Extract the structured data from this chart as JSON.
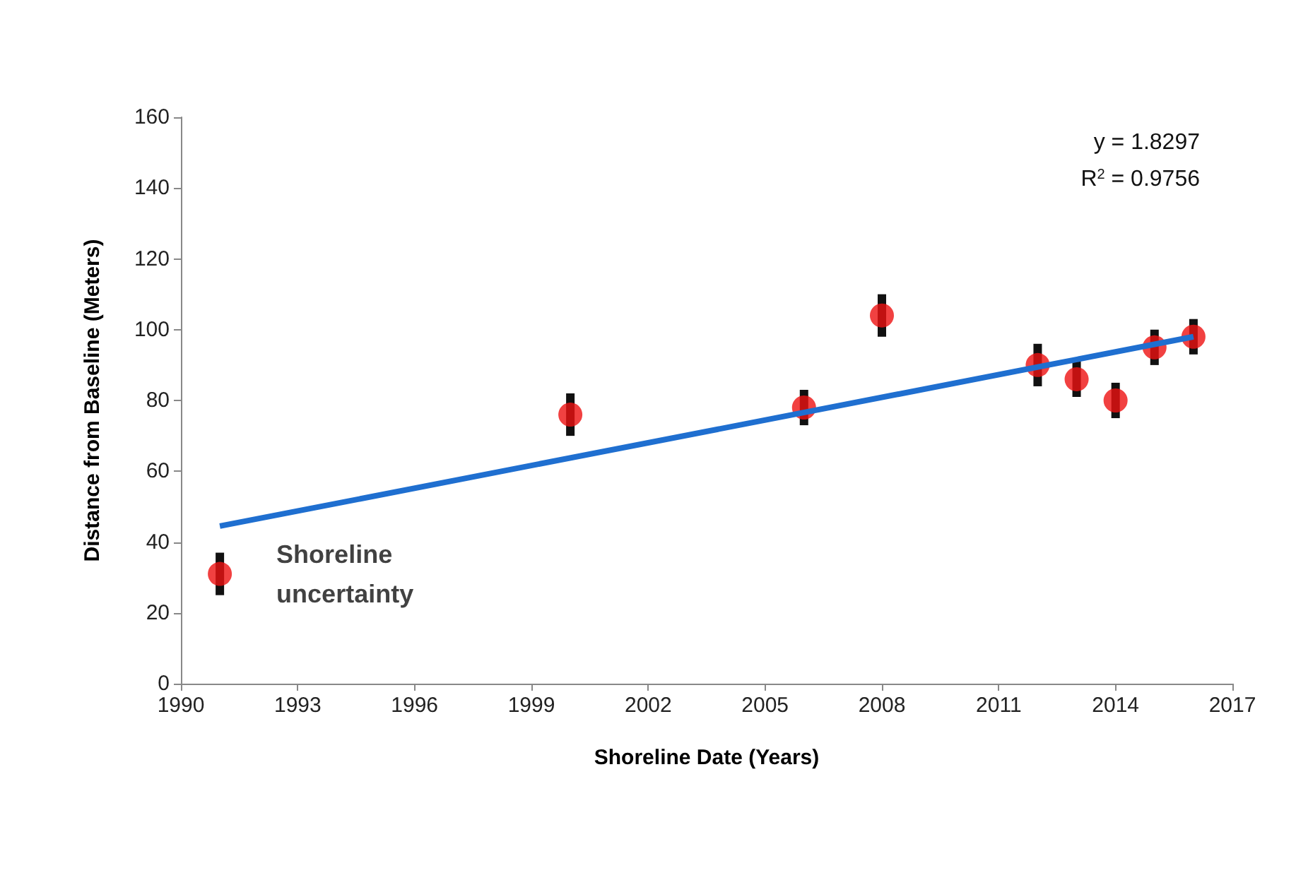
{
  "chart_data": {
    "type": "scatter",
    "xlabel": "Shoreline Date (Years)",
    "ylabel": "Distance from Baseline (Meters)",
    "xlim": [
      1990,
      2017
    ],
    "xticks": [
      1990,
      1993,
      1996,
      1999,
      2002,
      2005,
      2008,
      2011,
      2014,
      2017
    ],
    "ylim": [
      0,
      160
    ],
    "yticks": [
      0,
      20,
      40,
      60,
      80,
      100,
      120,
      140,
      160
    ],
    "grid": false,
    "marker": "circle",
    "series": [
      {
        "color": "#ee1111",
        "x": [
          1991,
          2000,
          2006,
          2008,
          2012,
          2013,
          2014,
          2015,
          2016
        ],
        "values": [
          31,
          76,
          78,
          104,
          90,
          86,
          80,
          95,
          98
        ],
        "errors": [
          6,
          6,
          5,
          6,
          6,
          5,
          5,
          5,
          5
        ]
      },
      {
        "type": "line",
        "color": "#1f6fd0",
        "x": [
          1991,
          2016
        ],
        "values": [
          44.5,
          98
        ],
        "marker": "none"
      }
    ],
    "annotations": [
      {
        "text": "Shoreline\nuncertainty",
        "x": 1991,
        "y": 31
      },
      "y = 1.8297",
      "R$^{2}$ = 0.9756"
    ]
  }
}
